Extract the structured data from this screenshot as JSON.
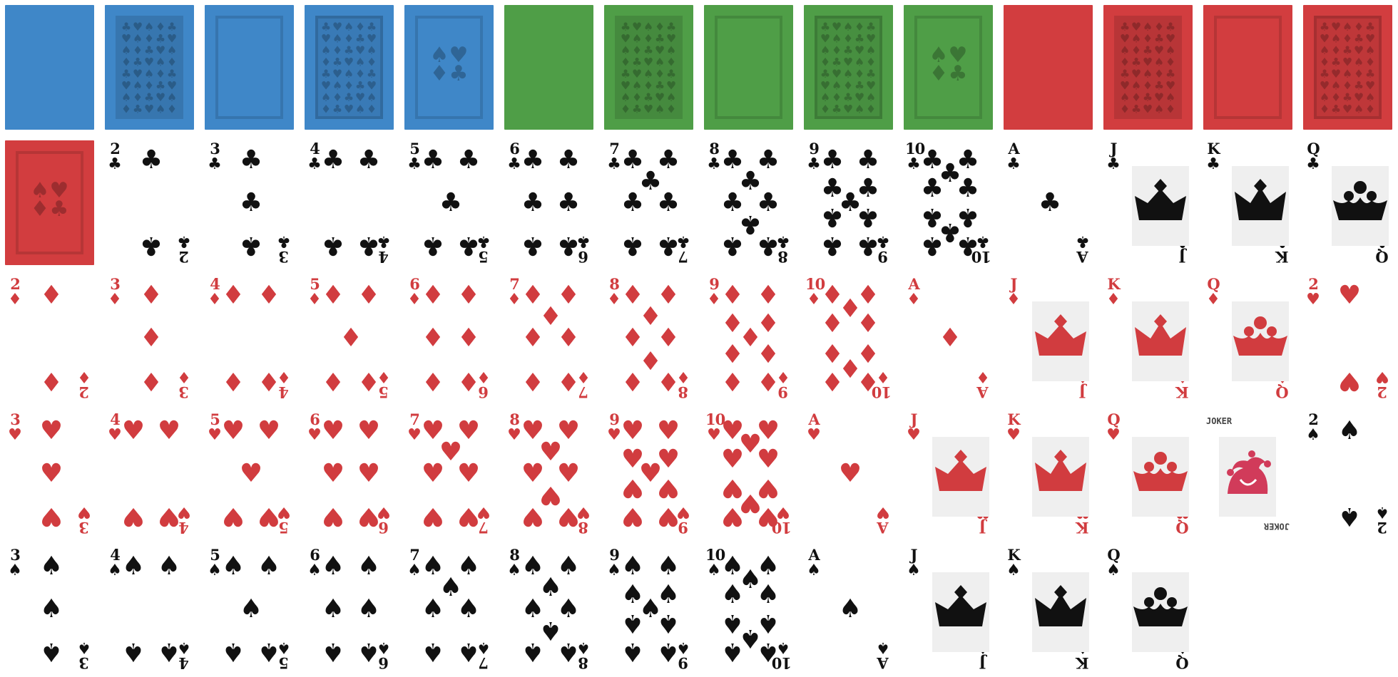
{
  "colors": {
    "blue": "#3f87c8",
    "green": "#4f9e47",
    "red": "#d23d3f",
    "black": "#111111",
    "card_red": "#d13c3f",
    "joker": "#d13b5a"
  },
  "suits": {
    "clubs": {
      "symbol": "♣",
      "color": "black"
    },
    "diamonds": {
      "symbol": "♦",
      "color": "card_red"
    },
    "hearts": {
      "symbol": "♥",
      "color": "card_red"
    },
    "spades": {
      "symbol": "♠",
      "color": "black"
    }
  },
  "cards": [
    {
      "type": "back",
      "color": "blue",
      "pattern": "plain"
    },
    {
      "type": "back",
      "color": "blue",
      "pattern": "grid"
    },
    {
      "type": "back",
      "color": "blue",
      "pattern": "frame"
    },
    {
      "type": "back",
      "color": "blue",
      "pattern": "framed-grid"
    },
    {
      "type": "back",
      "color": "blue",
      "pattern": "emblem"
    },
    {
      "type": "back",
      "color": "green",
      "pattern": "plain"
    },
    {
      "type": "back",
      "color": "green",
      "pattern": "grid"
    },
    {
      "type": "back",
      "color": "green",
      "pattern": "frame"
    },
    {
      "type": "back",
      "color": "green",
      "pattern": "framed-grid"
    },
    {
      "type": "back",
      "color": "green",
      "pattern": "emblem"
    },
    {
      "type": "back",
      "color": "red",
      "pattern": "plain"
    },
    {
      "type": "back",
      "color": "red",
      "pattern": "grid"
    },
    {
      "type": "back",
      "color": "red",
      "pattern": "frame"
    },
    {
      "type": "back",
      "color": "red",
      "pattern": "framed-grid"
    },
    {
      "type": "back",
      "color": "red",
      "pattern": "emblem"
    },
    {
      "rank": "2",
      "suit": "clubs"
    },
    {
      "rank": "3",
      "suit": "clubs"
    },
    {
      "rank": "4",
      "suit": "clubs"
    },
    {
      "rank": "5",
      "suit": "clubs"
    },
    {
      "rank": "6",
      "suit": "clubs"
    },
    {
      "rank": "7",
      "suit": "clubs"
    },
    {
      "rank": "8",
      "suit": "clubs"
    },
    {
      "rank": "9",
      "suit": "clubs"
    },
    {
      "rank": "10",
      "suit": "clubs"
    },
    {
      "rank": "A",
      "suit": "clubs"
    },
    {
      "rank": "J",
      "suit": "clubs"
    },
    {
      "rank": "K",
      "suit": "clubs"
    },
    {
      "rank": "Q",
      "suit": "clubs"
    },
    {
      "rank": "2",
      "suit": "diamonds"
    },
    {
      "rank": "3",
      "suit": "diamonds"
    },
    {
      "rank": "4",
      "suit": "diamonds"
    },
    {
      "rank": "5",
      "suit": "diamonds"
    },
    {
      "rank": "6",
      "suit": "diamonds"
    },
    {
      "rank": "7",
      "suit": "diamonds"
    },
    {
      "rank": "8",
      "suit": "diamonds"
    },
    {
      "rank": "9",
      "suit": "diamonds"
    },
    {
      "rank": "10",
      "suit": "diamonds"
    },
    {
      "rank": "A",
      "suit": "diamonds"
    },
    {
      "rank": "J",
      "suit": "diamonds"
    },
    {
      "rank": "K",
      "suit": "diamonds"
    },
    {
      "rank": "Q",
      "suit": "diamonds"
    },
    {
      "rank": "2",
      "suit": "hearts"
    },
    {
      "rank": "3",
      "suit": "hearts"
    },
    {
      "rank": "4",
      "suit": "hearts"
    },
    {
      "rank": "5",
      "suit": "hearts"
    },
    {
      "rank": "6",
      "suit": "hearts"
    },
    {
      "rank": "7",
      "suit": "hearts"
    },
    {
      "rank": "8",
      "suit": "hearts"
    },
    {
      "rank": "9",
      "suit": "hearts"
    },
    {
      "rank": "10",
      "suit": "hearts"
    },
    {
      "rank": "A",
      "suit": "hearts"
    },
    {
      "rank": "J",
      "suit": "hearts"
    },
    {
      "rank": "K",
      "suit": "hearts"
    },
    {
      "rank": "Q",
      "suit": "hearts"
    },
    {
      "type": "joker",
      "label": "JOKER"
    },
    {
      "rank": "2",
      "suit": "spades"
    },
    {
      "rank": "3",
      "suit": "spades"
    },
    {
      "rank": "4",
      "suit": "spades"
    },
    {
      "rank": "5",
      "suit": "spades"
    },
    {
      "rank": "6",
      "suit": "spades"
    },
    {
      "rank": "7",
      "suit": "spades"
    },
    {
      "rank": "8",
      "suit": "spades"
    },
    {
      "rank": "9",
      "suit": "spades"
    },
    {
      "rank": "10",
      "suit": "spades"
    },
    {
      "rank": "A",
      "suit": "spades"
    },
    {
      "rank": "J",
      "suit": "spades"
    },
    {
      "rank": "K",
      "suit": "spades"
    },
    {
      "rank": "Q",
      "suit": "spades"
    }
  ]
}
